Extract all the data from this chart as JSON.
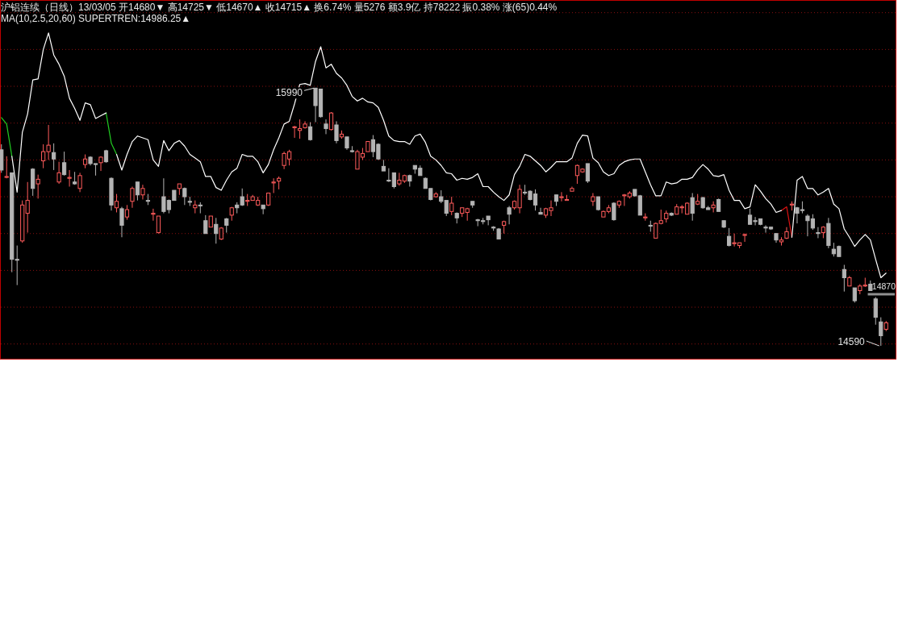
{
  "chart_data": {
    "type": "candlestick",
    "title": "沪铝连续（日线）13/03/05 开14680▼ 高14725▼ 低14670▲ 收14715▲ 换6.74% 量5276 额3.9亿 持78222 振0.38% 涨(65)0.44%",
    "subtitle": "MA(10,2.5,20,60) SUPERTREN:14986.25▲",
    "annotations": [
      "15990",
      "14590"
    ],
    "categories": [
      null,
      null,
      null,
      null,
      null,
      null,
      null,
      null,
      null,
      null,
      null,
      null,
      null,
      null,
      null,
      null,
      null,
      null,
      null,
      null,
      null,
      null,
      null,
      null,
      null,
      null,
      null,
      null,
      null,
      null,
      null,
      null,
      null,
      null,
      null,
      null,
      null,
      null,
      null,
      null,
      null,
      null,
      null,
      null,
      null,
      null,
      null,
      null,
      null,
      null,
      null,
      null,
      null,
      null,
      null,
      null,
      null,
      null,
      null,
      null,
      null,
      null,
      null,
      null,
      null,
      null,
      null,
      null,
      null,
      null,
      null,
      null,
      null,
      null,
      null,
      null,
      null,
      null,
      null,
      null,
      null,
      null,
      null,
      null,
      null,
      null,
      null,
      null,
      null,
      null,
      null,
      null,
      null,
      null,
      null,
      null,
      null,
      null,
      null,
      null,
      null,
      null,
      null,
      null,
      null,
      null,
      null,
      null,
      null,
      null,
      null,
      null,
      null,
      null,
      null,
      null,
      null,
      null,
      null,
      null,
      null,
      null,
      null,
      null,
      null,
      null,
      null,
      null,
      null,
      null,
      null,
      null,
      null,
      null,
      null,
      null,
      null,
      null,
      null,
      null,
      null,
      null,
      null,
      null,
      null,
      null,
      null,
      null,
      null,
      null,
      null,
      null,
      null,
      null,
      null,
      null,
      null,
      null,
      null,
      null,
      null,
      null,
      null,
      null,
      null,
      null,
      null,
      null,
      null,
      null
    ],
    "ohlc": [
      [
        15655,
        15685,
        15530,
        15545
      ],
      [
        15505,
        15620,
        15500,
        15510
      ],
      [
        15530,
        15530,
        14990,
        15060
      ],
      [
        15060,
        15135,
        14920,
        15055
      ],
      [
        15160,
        15380,
        15150,
        15355
      ],
      [
        15310,
        15480,
        15205,
        15380
      ],
      [
        15550,
        15555,
        15405,
        15445
      ],
      [
        15470,
        15520,
        15390,
        15495
      ],
      [
        15595,
        15685,
        15555,
        15645
      ],
      [
        15645,
        15790,
        15600,
        15680
      ],
      [
        15640,
        15690,
        15545,
        15605
      ],
      [
        15480,
        15590,
        15470,
        15530
      ],
      [
        15585,
        15645,
        15515,
        15520
      ],
      [
        15500,
        15545,
        15455,
        15505
      ],
      [
        15480,
        15535,
        15465,
        15470
      ],
      [
        15445,
        15530,
        15425,
        15515
      ],
      [
        15575,
        15630,
        15555,
        15605
      ],
      [
        15615,
        15620,
        15570,
        15580
      ],
      [
        15580,
        15580,
        15515,
        15575
      ],
      [
        15585,
        15620,
        15540,
        15615
      ],
      [
        15650,
        15655,
        15585,
        15590
      ],
      [
        15500,
        15505,
        15325,
        15355
      ],
      [
        15340,
        15415,
        15315,
        15375
      ],
      [
        15335,
        15345,
        15180,
        15245
      ],
      [
        15290,
        15355,
        15275,
        15330
      ],
      [
        15375,
        15455,
        15340,
        15445
      ],
      [
        15480,
        15480,
        15380,
        15410
      ],
      [
        15410,
        15465,
        15385,
        15445
      ],
      [
        15380,
        15415,
        15355,
        15375
      ],
      [
        15305,
        15335,
        15270,
        15310
      ],
      [
        15205,
        15295,
        15200,
        15295
      ],
      [
        15400,
        15500,
        15310,
        15320
      ],
      [
        15380,
        15385,
        15310,
        15330
      ],
      [
        15435,
        15435,
        15380,
        15380
      ],
      [
        15445,
        15470,
        15410,
        15470
      ],
      [
        15445,
        15450,
        15355,
        15400
      ],
      [
        15375,
        15400,
        15350,
        15370
      ],
      [
        15340,
        15380,
        15310,
        15355
      ],
      [
        15355,
        15370,
        15310,
        15350
      ],
      [
        15270,
        15300,
        15200,
        15200
      ],
      [
        15235,
        15295,
        15235,
        15295
      ],
      [
        15250,
        15285,
        15145,
        15200
      ],
      [
        15170,
        15235,
        15165,
        15230
      ],
      [
        15280,
        15285,
        15205,
        15245
      ],
      [
        15300,
        15345,
        15270,
        15340
      ],
      [
        15355,
        15370,
        15310,
        15340
      ],
      [
        15400,
        15445,
        15350,
        15355
      ],
      [
        15375,
        15415,
        15350,
        15380
      ],
      [
        15380,
        15410,
        15380,
        15400
      ],
      [
        15355,
        15400,
        15350,
        15380
      ],
      [
        15355,
        15355,
        15305,
        15335
      ],
      [
        15355,
        15420,
        15350,
        15420
      ],
      [
        15475,
        15500,
        15420,
        15480
      ],
      [
        15485,
        15510,
        15440,
        15500
      ],
      [
        15570,
        15645,
        15550,
        15635
      ],
      [
        15605,
        15655,
        15570,
        15645
      ],
      [
        15775,
        15785,
        15720,
        15780
      ],
      [
        15760,
        15820,
        15715,
        15770
      ],
      [
        15775,
        15810,
        15770,
        15795
      ],
      [
        15780,
        15805,
        15705,
        15710
      ],
      [
        15990,
        15990,
        15805,
        15895
      ],
      [
        15985,
        15985,
        15830,
        15835
      ],
      [
        15795,
        15820,
        15740,
        15770
      ],
      [
        15765,
        15860,
        15760,
        15855
      ],
      [
        15790,
        15810,
        15690,
        15705
      ],
      [
        15725,
        15760,
        15715,
        15740
      ],
      [
        15725,
        15725,
        15655,
        15665
      ],
      [
        15650,
        15675,
        15640,
        15645
      ],
      [
        15550,
        15655,
        15550,
        15645
      ],
      [
        15615,
        15665,
        15600,
        15635
      ],
      [
        15645,
        15700,
        15645,
        15700
      ],
      [
        15710,
        15735,
        15615,
        15645
      ],
      [
        15685,
        15690,
        15600,
        15605
      ],
      [
        15565,
        15600,
        15540,
        15540
      ],
      [
        15490,
        15555,
        15480,
        15485
      ],
      [
        15530,
        15530,
        15445,
        15455
      ],
      [
        15470,
        15530,
        15460,
        15490
      ],
      [
        15485,
        15520,
        15475,
        15515
      ],
      [
        15515,
        15520,
        15455,
        15485
      ],
      [
        15570,
        15570,
        15525,
        15550
      ],
      [
        15555,
        15570,
        15515,
        15515
      ],
      [
        15500,
        15505,
        15445,
        15445
      ],
      [
        15445,
        15445,
        15380,
        15385
      ],
      [
        15400,
        15425,
        15395,
        15415
      ],
      [
        15400,
        15435,
        15365,
        15375
      ],
      [
        15380,
        15380,
        15295,
        15310
      ],
      [
        15320,
        15400,
        15300,
        15365
      ],
      [
        15310,
        15315,
        15255,
        15285
      ],
      [
        15310,
        15340,
        15290,
        15340
      ],
      [
        15315,
        15340,
        15270,
        15335
      ],
      [
        15375,
        15375,
        15340,
        15355
      ],
      [
        15275,
        15280,
        15240,
        15270
      ],
      [
        15270,
        15285,
        15250,
        15265
      ],
      [
        15295,
        15295,
        15245,
        15275
      ],
      [
        15235,
        15240,
        15215,
        15230
      ],
      [
        15225,
        15230,
        15170,
        15170
      ],
      [
        15245,
        15270,
        15200,
        15265
      ],
      [
        15340,
        15350,
        15250,
        15305
      ],
      [
        15340,
        15380,
        15330,
        15375
      ],
      [
        15340,
        15465,
        15310,
        15440
      ],
      [
        15425,
        15465,
        15410,
        15420
      ],
      [
        15430,
        15435,
        15380,
        15385
      ],
      [
        15415,
        15440,
        15325,
        15355
      ],
      [
        15315,
        15340,
        15305,
        15305
      ],
      [
        15300,
        15340,
        15285,
        15335
      ],
      [
        15325,
        15380,
        15295,
        15340
      ],
      [
        15410,
        15410,
        15350,
        15375
      ],
      [
        15395,
        15425,
        15375,
        15400
      ],
      [
        15380,
        15410,
        15380,
        15385
      ],
      [
        15430,
        15455,
        15430,
        15445
      ],
      [
        15515,
        15575,
        15470,
        15570
      ],
      [
        15535,
        15555,
        15530,
        15550
      ],
      [
        15580,
        15580,
        15475,
        15485
      ],
      [
        15375,
        15420,
        15350,
        15400
      ],
      [
        15400,
        15400,
        15325,
        15330
      ],
      [
        15290,
        15325,
        15290,
        15320
      ],
      [
        15320,
        15355,
        15310,
        15340
      ],
      [
        15365,
        15370,
        15270,
        15275
      ],
      [
        15355,
        15380,
        15340,
        15375
      ],
      [
        15405,
        15415,
        15350,
        15410
      ],
      [
        15400,
        15430,
        15390,
        15420
      ],
      [
        15440,
        15440,
        15400,
        15405
      ],
      [
        15405,
        15410,
        15300,
        15300
      ],
      [
        15285,
        15310,
        15270,
        15290
      ],
      [
        15245,
        15270,
        15210,
        15240
      ],
      [
        15175,
        15260,
        15175,
        15255
      ],
      [
        15255,
        15330,
        15250,
        15270
      ],
      [
        15280,
        15325,
        15260,
        15310
      ],
      [
        15310,
        15315,
        15295,
        15300
      ],
      [
        15305,
        15360,
        15305,
        15345
      ],
      [
        15340,
        15355,
        15310,
        15345
      ],
      [
        15305,
        15370,
        15305,
        15365
      ],
      [
        15395,
        15420,
        15270,
        15310
      ],
      [
        15360,
        15415,
        15355,
        15375
      ],
      [
        15395,
        15400,
        15335,
        15340
      ],
      [
        15340,
        15350,
        15330,
        15330
      ],
      [
        15340,
        15375,
        15315,
        15355
      ],
      [
        15385,
        15390,
        15320,
        15320
      ],
      [
        15270,
        15270,
        15230,
        15235
      ],
      [
        15185,
        15230,
        15130,
        15135
      ],
      [
        15145,
        15200,
        15130,
        15150
      ],
      [
        15135,
        15150,
        15120,
        15150
      ],
      [
        15190,
        15200,
        15155,
        15195
      ],
      [
        15300,
        15335,
        15250,
        15250
      ],
      [
        15270,
        15290,
        15245,
        15265
      ],
      [
        15280,
        15280,
        15245,
        15250
      ],
      [
        15235,
        15245,
        15205,
        15230
      ],
      [
        15235,
        15235,
        15220,
        15225
      ],
      [
        15200,
        15200,
        15150,
        15165
      ],
      [
        15155,
        15180,
        15135,
        15165
      ],
      [
        15175,
        15235,
        15170,
        15210
      ],
      [
        15355,
        15375,
        15325,
        15360
      ],
      [
        15340,
        15345,
        15255,
        15310
      ],
      [
        15330,
        15375,
        15310,
        15325
      ],
      [
        15295,
        15305,
        15185,
        15270
      ],
      [
        15280,
        15305,
        15220,
        15230
      ],
      [
        15205,
        15235,
        15175,
        15200
      ],
      [
        15205,
        15240,
        15175,
        15235
      ],
      [
        15255,
        15285,
        15120,
        15135
      ],
      [
        15115,
        15150,
        15075,
        15090
      ],
      [
        15130,
        15135,
        15075,
        15075
      ],
      [
        15005,
        15030,
        14885,
        14960
      ],
      [
        14915,
        14970,
        14915,
        14960
      ],
      [
        14905,
        14905,
        14825,
        14835
      ],
      [
        14890,
        14925,
        14870,
        14915
      ],
      [
        14915,
        14960,
        14910,
        14920
      ],
      [
        14925,
        14945,
        14890,
        14890
      ],
      [
        14845,
        14855,
        14705,
        14745
      ],
      [
        14720,
        14745,
        14590,
        14645
      ],
      [
        14680,
        14725,
        14670,
        14715
      ]
    ],
    "series": [
      {
        "type": "line",
        "color": "#ffffff",
        "values": [
          null,
          null,
          15620,
          15425,
          15750,
          15850,
          16035,
          16040,
          16200,
          16290,
          16170,
          16120,
          16055,
          15935,
          15880,
          15815,
          15910,
          15900,
          15825,
          15840,
          15855,
          null,
          15630,
          15545,
          15630,
          15700,
          15730,
          15720,
          15710,
          15600,
          15565,
          15705,
          15650,
          15690,
          15705,
          15675,
          15630,
          15610,
          15590,
          15510,
          15510,
          15450,
          15435,
          15490,
          15535,
          15555,
          15630,
          15620,
          15620,
          15590,
          15530,
          15575,
          15655,
          15720,
          15795,
          15810,
          15905,
          16010,
          16015,
          16005,
          16135,
          16215,
          16100,
          16120,
          16070,
          16045,
          16005,
          15945,
          15920,
          15935,
          15915,
          15910,
          15885,
          15815,
          15730,
          15705,
          15700,
          15700,
          15685,
          15730,
          15740,
          15695,
          15620,
          15600,
          15570,
          15530,
          15525,
          15490,
          15500,
          15495,
          15505,
          15525,
          15455,
          15455,
          15425,
          15400,
          15380,
          15410,
          15520,
          15565,
          15630,
          15620,
          15595,
          15570,
          15535,
          15560,
          15590,
          15590,
          15590,
          15610,
          15690,
          15735,
          15730,
          15610,
          15585,
          15535,
          15515,
          15525,
          15570,
          15590,
          15600,
          15605,
          15605,
          15535,
          15465,
          15405,
          15405,
          15480,
          15470,
          15475,
          15495,
          15495,
          15505,
          15545,
          15575,
          15550,
          15515,
          15510,
          15520,
          15435,
          15380,
          15380,
          15335,
          15345,
          15465,
          15430,
          15390,
          15360,
          15315,
          15325,
          null,
          15180,
          15490,
          15510,
          15445,
          15445,
          15410,
          15425,
          15445,
          15360,
          15335,
          15225,
          15180,
          15130,
          15165,
          15195,
          15165,
          15060,
          14960,
          14985
        ]
      },
      {
        "type": "line",
        "color": "#22cc22",
        "values": [
          15830,
          15795,
          15620,
          null,
          null,
          null,
          null,
          null,
          null,
          null,
          null,
          null,
          null,
          null,
          null,
          null,
          null,
          null,
          null,
          null,
          15855,
          15690,
          15630,
          null,
          null,
          null,
          null,
          null,
          null,
          null,
          null,
          null,
          null,
          null,
          null,
          null,
          null,
          null,
          null,
          null,
          null,
          null,
          null,
          null,
          null,
          null,
          null,
          null,
          null,
          null,
          null,
          null,
          null,
          null,
          null,
          null,
          null,
          null,
          null,
          null,
          null,
          null,
          null,
          null,
          null,
          null,
          null,
          null,
          null,
          null,
          null,
          null,
          null,
          null,
          null,
          null,
          null,
          null,
          null,
          null,
          null,
          null,
          null,
          null,
          null,
          null,
          null,
          null,
          null,
          null,
          null,
          null,
          null,
          null,
          null,
          null,
          null,
          null,
          null,
          null,
          null,
          null,
          null,
          null,
          null,
          null,
          null,
          null,
          null,
          null,
          null,
          null,
          null,
          null,
          null,
          null,
          null,
          null,
          null,
          null,
          null,
          null,
          null,
          null,
          null,
          null,
          null,
          null,
          null,
          null,
          null,
          null,
          null,
          null,
          null,
          null,
          null,
          null,
          null,
          null,
          null,
          null,
          null,
          null,
          null,
          null,
          null,
          null,
          null,
          null,
          null,
          null,
          null,
          null,
          null,
          null,
          null,
          null,
          null,
          null,
          null,
          null,
          null,
          null,
          null,
          null,
          null,
          null,
          null,
          null
        ]
      },
      {
        "type": "line",
        "color": "#dd1111",
        "values": [
          null,
          null,
          null,
          null,
          null,
          null,
          null,
          null,
          null,
          null,
          null,
          null,
          null,
          null,
          null,
          null,
          null,
          null,
          null,
          null,
          null,
          null,
          null,
          null,
          null,
          null,
          null,
          null,
          null,
          null,
          null,
          null,
          null,
          null,
          null,
          null,
          null,
          null,
          null,
          null,
          null,
          null,
          null,
          null,
          null,
          null,
          null,
          null,
          null,
          null,
          null,
          null,
          null,
          null,
          null,
          null,
          null,
          null,
          null,
          null,
          null,
          null,
          null,
          null,
          null,
          null,
          null,
          null,
          null,
          null,
          null,
          null,
          null,
          null,
          null,
          null,
          null,
          null,
          null,
          null,
          null,
          null,
          null,
          null,
          null,
          null,
          null,
          null,
          null,
          null,
          null,
          null,
          null,
          null,
          null,
          null,
          null,
          null,
          null,
          null,
          null,
          null,
          null,
          null,
          null,
          null,
          null,
          null,
          null,
          null,
          null,
          null,
          null,
          null,
          null,
          null,
          null,
          null,
          null,
          null,
          null,
          null,
          null,
          null,
          null,
          null,
          null,
          null,
          null,
          null,
          null,
          null,
          null,
          null,
          null,
          null,
          null,
          null,
          null,
          null,
          null,
          null,
          null,
          null,
          null,
          null,
          null,
          null,
          null,
          15325,
          15345,
          15180,
          null,
          null,
          null,
          null,
          null,
          null,
          null,
          null,
          null,
          null,
          null,
          null,
          null,
          null,
          null,
          null,
          null,
          null
        ]
      }
    ],
    "ref_lines": [
      {
        "axis": "y",
        "value": 14870,
        "label": "14870",
        "color": "#909090"
      }
    ],
    "ylim": [
      14520,
      16460
    ],
    "yticks": [
      {
        "value": 14600,
        "label": null
      },
      {
        "value": 14800,
        "label": null
      },
      {
        "value": 15000,
        "label": null
      },
      {
        "value": 15200,
        "label": null
      },
      {
        "value": 15400,
        "label": null
      },
      {
        "value": 15600,
        "label": null
      },
      {
        "value": 15800,
        "label": null
      },
      {
        "value": 16000,
        "label": null
      },
      {
        "value": 16200,
        "label": null
      },
      {
        "value": 16400,
        "label": null
      }
    ],
    "grid": "y"
  }
}
